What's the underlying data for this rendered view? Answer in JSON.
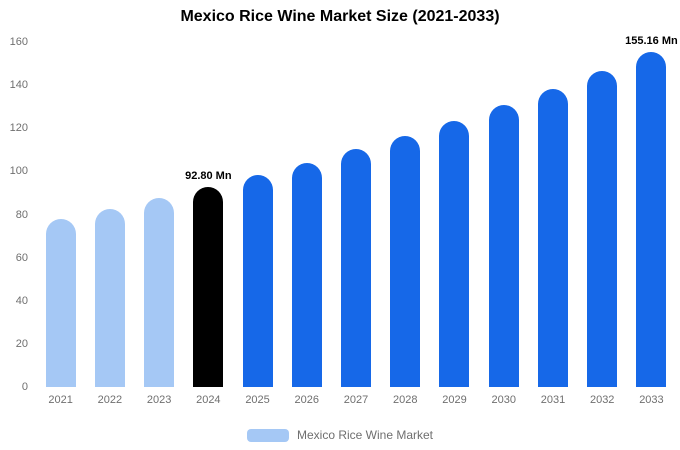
{
  "title": "Mexico Rice Wine Market Size (2021-2033)",
  "legend": {
    "label": "Mexico Rice Wine Market"
  },
  "colors": {
    "light": "#a5c8f5",
    "primary": "#1668e8",
    "highlight": "#000000",
    "axis_text": "#6f6f6f"
  },
  "chart_data": {
    "type": "bar",
    "title": "Mexico Rice Wine Market Size (2021-2033)",
    "unit": "Mn",
    "categories": [
      "2021",
      "2022",
      "2023",
      "2024",
      "2025",
      "2026",
      "2027",
      "2028",
      "2029",
      "2030",
      "2031",
      "2032",
      "2033"
    ],
    "values": [
      78.1,
      82.7,
      87.6,
      92.8,
      98.3,
      104.0,
      110.2,
      116.6,
      123.5,
      130.7,
      138.4,
      146.6,
      155.16
    ],
    "color_roles": [
      "light",
      "light",
      "light",
      "highlight",
      "primary",
      "primary",
      "primary",
      "primary",
      "primary",
      "primary",
      "primary",
      "primary",
      "primary"
    ],
    "annotations": [
      {
        "category": "2024",
        "text": "92.80 Mn"
      },
      {
        "category": "2033",
        "text": "155.16 Mn"
      }
    ],
    "xlabel": "",
    "ylabel": "",
    "ylim": [
      0,
      160
    ],
    "yticks": [
      0,
      20,
      40,
      60,
      80,
      100,
      120,
      140,
      160
    ],
    "grid": false,
    "legend_position": "bottom",
    "legend_entries": [
      "Mexico Rice Wine Market"
    ]
  }
}
